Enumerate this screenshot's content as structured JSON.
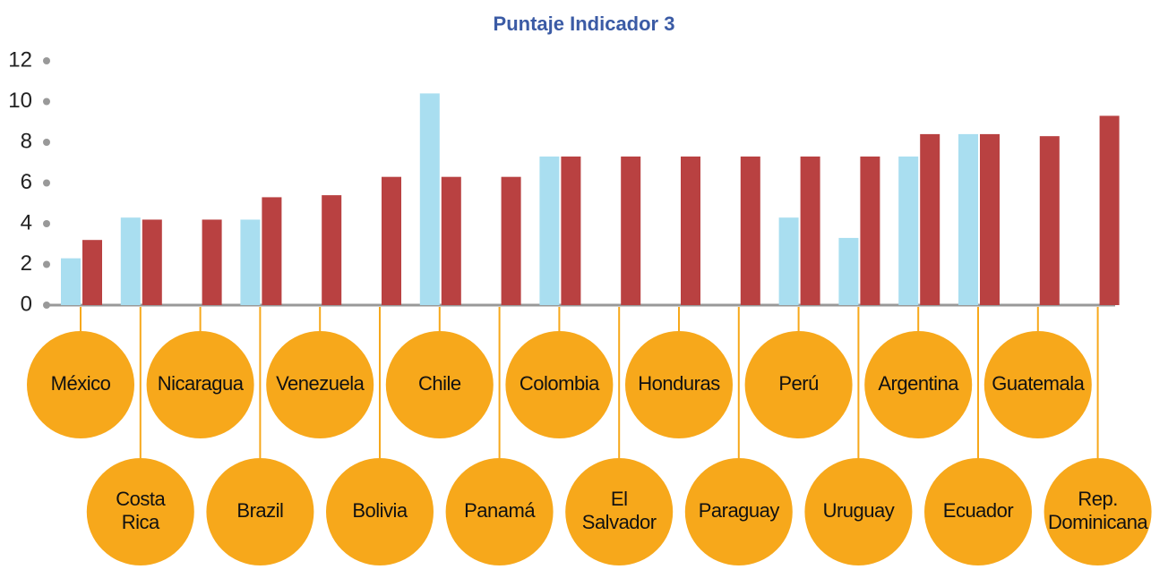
{
  "chart_data": {
    "type": "bar",
    "title": "Puntaje Indicador 3",
    "categories": [
      "México",
      "Costa Rica",
      "Nicaragua",
      "Brazil",
      "Venezuela",
      "Bolivia",
      "Chile",
      "Panamá",
      "Colombia",
      "El Salvador",
      "Honduras",
      "Paraguay",
      "Perú",
      "Uruguay",
      "Argentina",
      "Ecuador",
      "Guatemala",
      "Rep. Dominicana"
    ],
    "series": [
      {
        "color": "#a9def0",
        "values": [
          2.3,
          4.3,
          null,
          4.2,
          null,
          null,
          10.4,
          null,
          7.3,
          null,
          null,
          null,
          4.3,
          3.3,
          7.3,
          8.4,
          null,
          null
        ]
      },
      {
        "color": "#b94141",
        "values": [
          3.2,
          4.2,
          4.2,
          5.3,
          5.4,
          6.3,
          6.3,
          6.3,
          7.3,
          7.3,
          7.3,
          7.3,
          7.3,
          7.3,
          8.4,
          8.4,
          8.3,
          9.3
        ]
      }
    ],
    "ylim": [
      0,
      12
    ],
    "yticks": [
      0,
      2,
      4,
      6,
      8,
      10,
      12
    ],
    "label_color": "#f7a81b"
  }
}
